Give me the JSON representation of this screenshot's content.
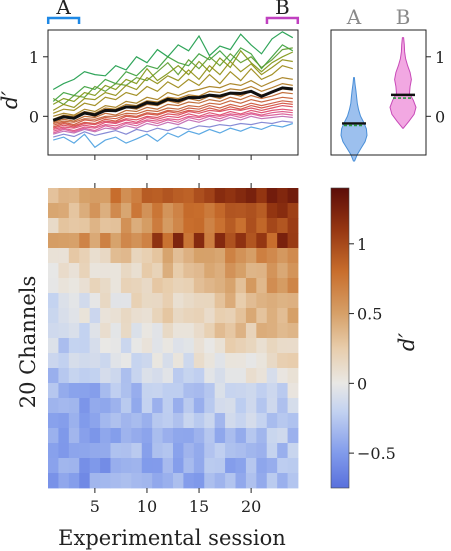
{
  "chart_data": [
    {
      "type": "line",
      "ylabel": "d′",
      "ylim": [
        -0.65,
        1.45
      ],
      "xlim": [
        0.5,
        24.5
      ],
      "yticks": [
        0,
        1
      ],
      "markers": {
        "A": {
          "label": "A",
          "range": [
            1,
            3
          ],
          "color": "#1e88e5"
        },
        "B": {
          "label": "B",
          "range": [
            22,
            24
          ],
          "color": "#c040c0"
        }
      },
      "channel_colors": [
        "#1a9b48",
        "#3a9e3a",
        "#5c9a2a",
        "#7d9410",
        "#8e8d10",
        "#9a8612",
        "#a47c18",
        "#ad731c",
        "#b46a22",
        "#bc6128",
        "#c3592e",
        "#cb5134",
        "#d2493a",
        "#d84454",
        "#db4468",
        "#dc4c80",
        "#d95895",
        "#c066b0",
        "#7a7ed0",
        "#4aa0e0"
      ],
      "mean_color": "#111111",
      "series": [
        {
          "values": [
            0.45,
            0.55,
            0.62,
            0.75,
            0.7,
            0.68,
            0.85,
            0.78,
            1.0,
            0.9,
            1.12,
            1.0,
            1.2,
            1.1,
            1.35,
            1.02,
            1.18,
            1.12,
            1.38,
            1.2,
            1.05,
            1.3,
            1.42,
            1.32
          ]
        },
        {
          "values": [
            0.25,
            0.4,
            0.35,
            0.5,
            0.45,
            0.62,
            0.55,
            0.75,
            0.68,
            0.85,
            0.8,
            1.0,
            0.9,
            0.85,
            1.05,
            0.95,
            1.1,
            0.92,
            1.15,
            1.05,
            0.8,
            1.0,
            1.2,
            1.1
          ]
        },
        {
          "values": [
            0.3,
            0.2,
            0.35,
            0.32,
            0.5,
            0.42,
            0.55,
            0.52,
            0.65,
            0.6,
            0.75,
            0.9,
            0.7,
            0.95,
            0.8,
            1.0,
            0.85,
            1.05,
            0.9,
            1.0,
            0.82,
            0.95,
            1.12,
            1.15
          ]
        },
        {
          "values": [
            0.2,
            0.3,
            0.25,
            0.4,
            0.35,
            0.52,
            0.45,
            0.62,
            0.55,
            0.8,
            0.6,
            0.72,
            0.85,
            0.7,
            0.92,
            0.75,
            0.98,
            0.82,
            1.1,
            0.9,
            0.75,
            0.9,
            1.0,
            1.08
          ]
        },
        {
          "values": [
            0.1,
            0.2,
            0.15,
            0.3,
            0.28,
            0.4,
            0.35,
            0.52,
            0.45,
            0.65,
            0.55,
            0.68,
            0.6,
            0.78,
            0.62,
            0.85,
            0.7,
            0.92,
            0.75,
            0.88,
            0.7,
            0.82,
            0.95,
            0.92
          ]
        },
        {
          "values": [
            0.05,
            0.12,
            0.1,
            0.22,
            0.18,
            0.32,
            0.28,
            0.4,
            0.35,
            0.5,
            0.42,
            0.58,
            0.48,
            0.62,
            0.52,
            0.7,
            0.55,
            0.75,
            0.6,
            0.8,
            0.62,
            0.7,
            0.85,
            0.8
          ]
        },
        {
          "values": [
            0.0,
            0.05,
            0.02,
            0.12,
            0.08,
            0.18,
            0.15,
            0.25,
            0.22,
            0.32,
            0.28,
            0.4,
            0.35,
            0.42,
            0.45,
            0.5,
            0.48,
            0.55,
            0.52,
            0.6,
            0.5,
            0.58,
            0.65,
            0.62
          ]
        },
        {
          "values": [
            -0.05,
            0.02,
            0.0,
            0.08,
            0.05,
            0.14,
            0.12,
            0.2,
            0.18,
            0.26,
            0.24,
            0.32,
            0.3,
            0.36,
            0.34,
            0.42,
            0.4,
            0.46,
            0.44,
            0.5,
            0.42,
            0.48,
            0.55,
            0.52
          ]
        },
        {
          "values": [
            -0.08,
            -0.02,
            -0.05,
            0.05,
            0.0,
            0.1,
            0.08,
            0.15,
            0.12,
            0.2,
            0.18,
            0.26,
            0.22,
            0.3,
            0.26,
            0.34,
            0.3,
            0.38,
            0.34,
            0.42,
            0.36,
            0.4,
            0.46,
            0.44
          ]
        },
        {
          "values": [
            -0.1,
            -0.05,
            -0.08,
            0.0,
            -0.02,
            0.05,
            0.02,
            0.1,
            0.08,
            0.15,
            0.12,
            0.2,
            0.18,
            0.24,
            0.22,
            0.28,
            0.25,
            0.32,
            0.28,
            0.35,
            0.3,
            0.34,
            0.4,
            0.38
          ]
        },
        {
          "values": [
            -0.12,
            -0.08,
            -0.1,
            -0.04,
            -0.05,
            0.0,
            0.0,
            0.05,
            0.04,
            0.1,
            0.08,
            0.14,
            0.12,
            0.18,
            0.16,
            0.22,
            0.2,
            0.26,
            0.22,
            0.28,
            0.24,
            0.28,
            0.32,
            0.3
          ]
        },
        {
          "values": [
            -0.15,
            -0.1,
            -0.14,
            -0.06,
            -0.08,
            -0.02,
            -0.04,
            0.02,
            0.0,
            0.06,
            0.04,
            0.1,
            0.08,
            0.14,
            0.12,
            0.18,
            0.14,
            0.2,
            0.16,
            0.22,
            0.18,
            0.22,
            0.26,
            0.24
          ]
        },
        {
          "values": [
            -0.18,
            -0.12,
            -0.16,
            -0.1,
            -0.12,
            -0.05,
            -0.08,
            0.0,
            -0.02,
            0.04,
            0.02,
            0.08,
            0.05,
            0.1,
            0.08,
            0.14,
            0.1,
            0.16,
            0.12,
            0.18,
            0.14,
            0.18,
            0.22,
            0.2
          ]
        },
        {
          "values": [
            -0.2,
            -0.15,
            -0.18,
            -0.12,
            -0.14,
            -0.08,
            -0.1,
            -0.04,
            -0.06,
            0.0,
            -0.02,
            0.04,
            0.02,
            0.08,
            0.05,
            0.1,
            0.08,
            0.12,
            0.1,
            0.14,
            0.1,
            0.14,
            0.18,
            0.16
          ]
        },
        {
          "values": [
            -0.22,
            -0.18,
            -0.2,
            -0.15,
            -0.18,
            -0.1,
            -0.12,
            -0.06,
            -0.1,
            -0.02,
            -0.05,
            0.0,
            -0.02,
            0.04,
            0.0,
            0.06,
            0.02,
            0.08,
            0.04,
            0.1,
            0.06,
            0.1,
            0.12,
            0.1
          ]
        },
        {
          "values": [
            -0.25,
            -0.2,
            -0.24,
            -0.18,
            -0.2,
            -0.14,
            -0.16,
            -0.1,
            -0.12,
            -0.06,
            -0.08,
            -0.04,
            -0.06,
            0.0,
            -0.02,
            0.02,
            0.0,
            0.04,
            0.02,
            0.06,
            0.02,
            0.06,
            0.08,
            0.06
          ]
        },
        {
          "values": [
            -0.28,
            -0.22,
            -0.26,
            -0.2,
            -0.24,
            -0.16,
            -0.2,
            -0.12,
            -0.16,
            -0.08,
            -0.12,
            -0.06,
            -0.1,
            -0.02,
            -0.06,
            0.0,
            -0.04,
            0.02,
            -0.02,
            0.04,
            0.0,
            0.02,
            0.04,
            0.02
          ]
        },
        {
          "values": [
            -0.3,
            -0.25,
            -0.28,
            -0.22,
            -0.26,
            -0.2,
            -0.22,
            -0.16,
            -0.2,
            -0.12,
            -0.16,
            -0.1,
            -0.14,
            -0.06,
            -0.1,
            -0.04,
            -0.08,
            -0.02,
            -0.06,
            0.0,
            -0.04,
            -0.02,
            0.0,
            -0.02
          ]
        },
        {
          "values": [
            -0.35,
            -0.3,
            -0.34,
            -0.26,
            -0.32,
            -0.28,
            -0.24,
            -0.3,
            -0.22,
            -0.26,
            -0.2,
            -0.24,
            -0.18,
            -0.22,
            -0.16,
            -0.18,
            -0.14,
            -0.16,
            -0.12,
            -0.14,
            -0.1,
            -0.12,
            -0.08,
            -0.1
          ]
        },
        {
          "values": [
            -0.4,
            -0.35,
            -0.45,
            -0.3,
            -0.52,
            -0.4,
            -0.35,
            -0.45,
            -0.38,
            -0.3,
            -0.42,
            -0.28,
            -0.35,
            -0.25,
            -0.3,
            -0.22,
            -0.28,
            -0.2,
            -0.25,
            -0.18,
            -0.22,
            -0.15,
            -0.18,
            -0.12
          ]
        }
      ]
    },
    {
      "type": "violin",
      "categories": [
        "A",
        "B"
      ],
      "ylim": [
        -0.65,
        1.45
      ],
      "yticks": [
        0,
        1
      ],
      "colors": {
        "A": "#9cc0ee",
        "B": "#f2a8e2"
      },
      "edge_colors": {
        "A": "#4a8fd8",
        "B": "#c84ab8"
      },
      "means": {
        "A": -0.12,
        "B": 0.34
      },
      "medians": {
        "A": -0.12,
        "B": 0.36
      },
      "extent": {
        "A": [
          -0.75,
          0.65
        ],
        "B": [
          -0.2,
          1.32
        ]
      }
    },
    {
      "type": "heatmap",
      "xlabel": "Experimental session",
      "ylabel": "20 Channels",
      "xticks": [
        5,
        10,
        15,
        20
      ],
      "n_sessions": 24,
      "n_channels": 20,
      "colorbar": {
        "label": "d′",
        "ticks": [
          -0.5,
          0,
          0.5,
          1
        ],
        "tick_labels": [
          "−0.5",
          "0",
          "0.5",
          "1"
        ],
        "vmin": -0.75,
        "vmax": 1.4,
        "cmap": "coolwarm_brown"
      },
      "rows": [
        {
          "start": 0.45,
          "end": 1.3
        },
        {
          "start": 0.35,
          "end": 1.1
        },
        {
          "start": 0.25,
          "end": 1.0
        },
        {
          "start": 0.5,
          "end": 0.95
        },
        {
          "start": 0.1,
          "end": 0.7
        },
        {
          "start": 0.0,
          "end": 0.6
        },
        {
          "start": -0.05,
          "end": 0.55
        },
        {
          "start": -0.1,
          "end": 0.5
        },
        {
          "start": -0.12,
          "end": 0.45
        },
        {
          "start": -0.15,
          "end": 0.4
        },
        {
          "start": -0.2,
          "end": 0.25
        },
        {
          "start": -0.25,
          "end": 0.15
        },
        {
          "start": -0.3,
          "end": 0.05
        },
        {
          "start": -0.4,
          "end": -0.1
        },
        {
          "start": -0.45,
          "end": -0.15
        },
        {
          "start": -0.45,
          "end": -0.2
        },
        {
          "start": -0.5,
          "end": -0.25
        },
        {
          "start": -0.45,
          "end": -0.25
        },
        {
          "start": -0.5,
          "end": -0.3
        },
        {
          "start": -0.5,
          "end": -0.3
        }
      ]
    }
  ]
}
